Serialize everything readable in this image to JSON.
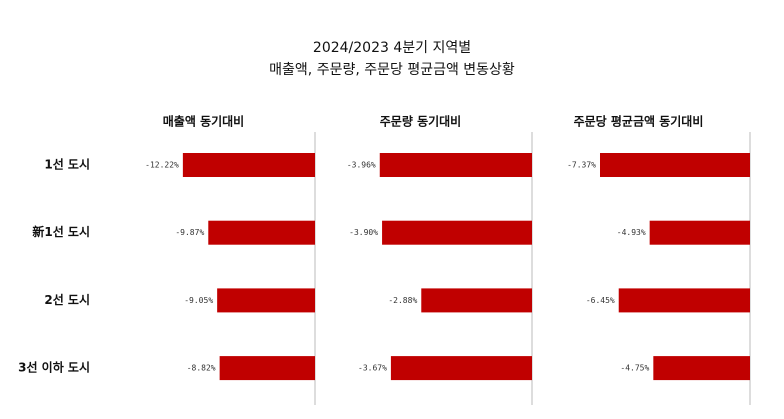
{
  "title_lines": [
    "2024/2023 4분기 지역별",
    "매출액, 주문량, 주문당 평균금액 변동상황"
  ],
  "categories": [
    "1선 도시",
    "新1선 도시",
    "2선 도시",
    "3선 이하 도시"
  ],
  "chart_data": [
    {
      "type": "bar",
      "orientation": "horizontal",
      "title": "매출액 동기대비",
      "color": "#c00000",
      "xlim": [
        -16,
        0
      ],
      "values": [
        -12.22,
        -9.87,
        -9.05,
        -8.82
      ],
      "value_labels": [
        "-12.22%",
        "-9.87%",
        "-9.05%",
        "-8.82%"
      ]
    },
    {
      "type": "bar",
      "orientation": "horizontal",
      "title": "주문량 동기대비",
      "color": "#c00000",
      "xlim": [
        -4.5,
        0
      ],
      "values": [
        -3.96,
        -3.9,
        -2.88,
        -3.67
      ],
      "value_labels": [
        "-3.96%",
        "-3.90%",
        "-2.88%",
        "-3.67%"
      ]
    },
    {
      "type": "bar",
      "orientation": "horizontal",
      "title": "주문당 평균금액 동기대비",
      "color": "#c00000",
      "xlim": [
        -8.5,
        0
      ],
      "values": [
        -7.37,
        -4.93,
        -6.45,
        -4.75
      ],
      "value_labels": [
        "-7.37%",
        "-4.93%",
        "-6.45%",
        "-4.75%"
      ]
    }
  ]
}
